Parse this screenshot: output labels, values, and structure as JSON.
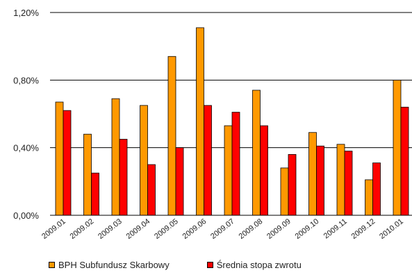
{
  "chart_data": {
    "type": "bar",
    "categories": [
      "2009.01",
      "2009.02",
      "2009.03",
      "2009.04",
      "2009.05",
      "2009.06",
      "2009.07",
      "2009.08",
      "2009.09",
      "2009.10",
      "2009.11",
      "2009.12",
      "2010.01"
    ],
    "series": [
      {
        "name": "BPH Subfundusz Skarbowy",
        "color": "#FF9900",
        "values": [
          0.67,
          0.48,
          0.69,
          0.65,
          0.94,
          1.11,
          0.53,
          0.74,
          0.28,
          0.49,
          0.42,
          0.21,
          0.8
        ]
      },
      {
        "name": "Średnia stopa zwrotu",
        "color": "#FF0000",
        "values": [
          0.62,
          0.25,
          0.45,
          0.3,
          0.4,
          0.65,
          0.61,
          0.53,
          0.36,
          0.41,
          0.38,
          0.31,
          0.64
        ]
      }
    ],
    "yticks": [
      "0,00%",
      "0,40%",
      "0,80%",
      "1,20%"
    ],
    "ytick_values": [
      0,
      0.4,
      0.8,
      1.2
    ],
    "ylim": [
      0,
      1.2
    ],
    "grid": true,
    "legend": "bottom"
  }
}
